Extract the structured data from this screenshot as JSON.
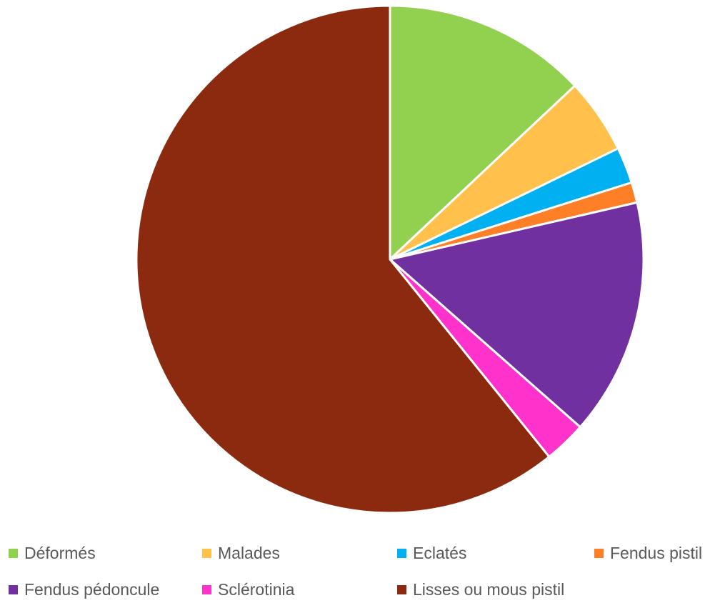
{
  "chart_data": {
    "type": "pie",
    "title": "",
    "legend_position": "bottom",
    "categories": [
      "Déformés",
      "Malades",
      "Eclatés",
      "Fendus pistil",
      "Fendus pédoncule",
      "Sclérotinia",
      "Lisses ou mous pistil"
    ],
    "values": [
      13.0,
      4.8,
      2.3,
      1.3,
      15.1,
      2.7,
      60.8
    ],
    "colors": [
      "#92d050",
      "#ffc04c",
      "#00b0f0",
      "#ff7f27",
      "#7030a0",
      "#ff33cc",
      "#8b2a0f"
    ]
  }
}
